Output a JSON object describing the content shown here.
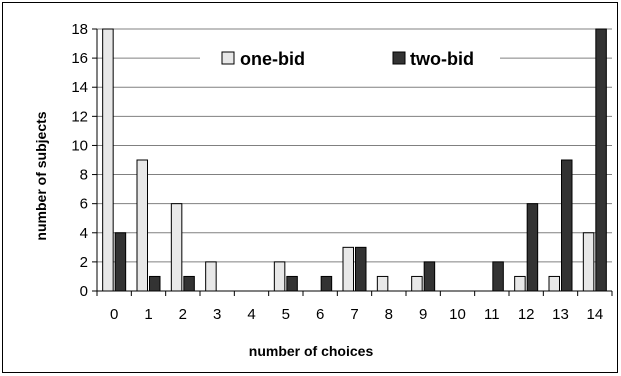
{
  "chart_data": {
    "type": "bar",
    "categories": [
      "0",
      "1",
      "2",
      "3",
      "4",
      "5",
      "6",
      "7",
      "8",
      "9",
      "10",
      "11",
      "12",
      "13",
      "14"
    ],
    "series": [
      {
        "name": "one-bid",
        "values": [
          18,
          9,
          6,
          2,
          0,
          2,
          0,
          3,
          1,
          1,
          0,
          0,
          1,
          1,
          4
        ],
        "color": "#e8e8e8"
      },
      {
        "name": "two-bid",
        "values": [
          4,
          1,
          1,
          0,
          0,
          1,
          1,
          3,
          0,
          2,
          0,
          2,
          6,
          9,
          18
        ],
        "color": "#333333"
      }
    ],
    "xlabel": "number of choices",
    "ylabel": "number of subjects",
    "ylim": [
      0,
      18
    ],
    "yticks": [
      0,
      2,
      4,
      6,
      8,
      10,
      12,
      14,
      16,
      18
    ],
    "grid": true,
    "legend": "top"
  }
}
